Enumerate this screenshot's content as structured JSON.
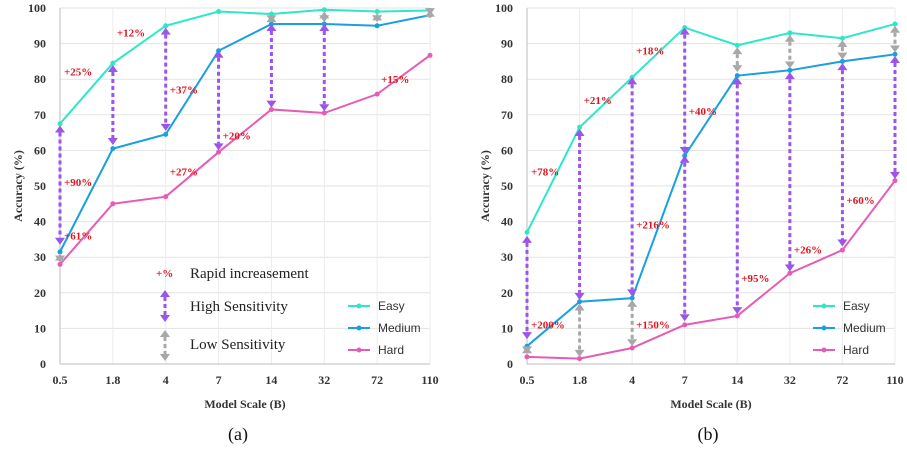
{
  "chart_data": [
    {
      "type": "line",
      "caption": "(a)",
      "xlabel": "Model Scale (B)",
      "ylabel": "Accuracy (%)",
      "categories": [
        "0.5",
        "1.8",
        "4",
        "7",
        "14",
        "32",
        "72",
        "110"
      ],
      "ylim": [
        0,
        100
      ],
      "yticks": [
        0,
        10,
        20,
        30,
        40,
        50,
        60,
        70,
        80,
        90,
        100
      ],
      "grid": true,
      "legend_position": "bottom-right",
      "series": [
        {
          "name": "Easy",
          "color": "#2de8c8",
          "values": [
            67.5,
            84.5,
            95,
            99,
            98.3,
            99.5,
            99,
            99.3
          ]
        },
        {
          "name": "Medium",
          "color": "#1a9fe0",
          "values": [
            31.5,
            60.5,
            64.5,
            88,
            95.5,
            95.5,
            95,
            98
          ]
        },
        {
          "name": "Hard",
          "color": "#e65cb4",
          "values": [
            28,
            45,
            47,
            59.5,
            71.5,
            70.5,
            75.8,
            86.7
          ]
        }
      ],
      "arrows": [
        {
          "x": "0.5",
          "from": 33.5,
          "to": 67,
          "type": "high"
        },
        {
          "x": "0.5",
          "from": 28.5,
          "to": 31,
          "type": "low"
        },
        {
          "x": "1.8",
          "from": 61.5,
          "to": 84,
          "type": "high"
        },
        {
          "x": "4",
          "from": 65.5,
          "to": 94.5,
          "type": "high"
        },
        {
          "x": "7",
          "from": 60,
          "to": 88,
          "type": "high"
        },
        {
          "x": "14",
          "from": 72,
          "to": 95.5,
          "type": "high"
        },
        {
          "x": "14",
          "from": 96,
          "to": 98,
          "type": "low"
        },
        {
          "x": "32",
          "from": 71,
          "to": 95.5,
          "type": "high"
        },
        {
          "x": "32",
          "from": 96,
          "to": 99,
          "type": "low"
        },
        {
          "x": "72",
          "from": 96,
          "to": 98.5,
          "type": "low"
        },
        {
          "x": "110",
          "from": 98,
          "to": 99.5,
          "type": "low"
        }
      ],
      "annotations": [
        {
          "text": "+25%",
          "x": "0.5",
          "y": 81
        },
        {
          "text": "+12%",
          "x": "1.8",
          "y": 92
        },
        {
          "text": "+37%",
          "x": "4",
          "y": 76
        },
        {
          "text": "+20%",
          "x": "7",
          "y": 63
        },
        {
          "text": "+15%",
          "x": "72",
          "y": 79
        },
        {
          "text": "+27%",
          "x": "4",
          "y": 53
        },
        {
          "text": "+90%",
          "x": "0.5",
          "y": 50
        },
        {
          "text": "+61%",
          "x": "0.5",
          "y": 35
        }
      ],
      "key": {
        "rapid_label": "Rapid increasement",
        "rapid_symbol": "+%",
        "high_label": "High Sensitivity",
        "low_label": "Low Sensitivity"
      }
    },
    {
      "type": "line",
      "caption": "(b)",
      "xlabel": "Model Scale (B)",
      "ylabel": "Accuracy (%)",
      "categories": [
        "0.5",
        "1.8",
        "4",
        "7",
        "14",
        "32",
        "72",
        "110"
      ],
      "ylim": [
        0,
        100
      ],
      "yticks": [
        0,
        10,
        20,
        30,
        40,
        50,
        60,
        70,
        80,
        90,
        100
      ],
      "grid": true,
      "legend_position": "bottom-right",
      "series": [
        {
          "name": "Easy",
          "color": "#2de8c8",
          "values": [
            37,
            66.5,
            80.5,
            94.5,
            89.5,
            93,
            91.5,
            95.5
          ]
        },
        {
          "name": "Medium",
          "color": "#1a9fe0",
          "values": [
            5,
            17.5,
            18.5,
            58.5,
            81,
            82.5,
            85,
            87
          ]
        },
        {
          "name": "Hard",
          "color": "#e65cb4",
          "values": [
            2,
            1.5,
            4.5,
            11,
            13.5,
            25.5,
            32,
            51.5
          ]
        }
      ],
      "arrows": [
        {
          "x": "0.5",
          "from": 7,
          "to": 36,
          "type": "high"
        },
        {
          "x": "0.5",
          "from": 3,
          "to": 5,
          "type": "low"
        },
        {
          "x": "1.8",
          "from": 18,
          "to": 66,
          "type": "high"
        },
        {
          "x": "1.8",
          "from": 2,
          "to": 17,
          "type": "low"
        },
        {
          "x": "4",
          "from": 19,
          "to": 80.5,
          "type": "high"
        },
        {
          "x": "4",
          "from": 5,
          "to": 18,
          "type": "low"
        },
        {
          "x": "7",
          "from": 12,
          "to": 58.5,
          "type": "high"
        },
        {
          "x": "7",
          "from": 59,
          "to": 94.5,
          "type": "high"
        },
        {
          "x": "14",
          "from": 14,
          "to": 80.5,
          "type": "high"
        },
        {
          "x": "14",
          "from": 82,
          "to": 89,
          "type": "low"
        },
        {
          "x": "32",
          "from": 26,
          "to": 82,
          "type": "high"
        },
        {
          "x": "32",
          "from": 83,
          "to": 92.5,
          "type": "low"
        },
        {
          "x": "72",
          "from": 33,
          "to": 84.5,
          "type": "high"
        },
        {
          "x": "72",
          "from": 85.5,
          "to": 91,
          "type": "low"
        },
        {
          "x": "110",
          "from": 52,
          "to": 86.5,
          "type": "high"
        },
        {
          "x": "110",
          "from": 87.5,
          "to": 95,
          "type": "low"
        }
      ],
      "annotations": [
        {
          "text": "+78%",
          "x": "0.5",
          "y": 53
        },
        {
          "text": "+21%",
          "x": "1.8",
          "y": 73
        },
        {
          "text": "+18%",
          "x": "4",
          "y": 87
        },
        {
          "text": "+40%",
          "x": "7",
          "y": 70
        },
        {
          "text": "+216%",
          "x": "4",
          "y": 38
        },
        {
          "text": "+200%",
          "x": "0.5",
          "y": 10
        },
        {
          "text": "+150%",
          "x": "4",
          "y": 10
        },
        {
          "text": "+95%",
          "x": "14",
          "y": 23
        },
        {
          "text": "+26%",
          "x": "32",
          "y": 31
        },
        {
          "text": "+60%",
          "x": "72",
          "y": 45
        }
      ]
    }
  ]
}
